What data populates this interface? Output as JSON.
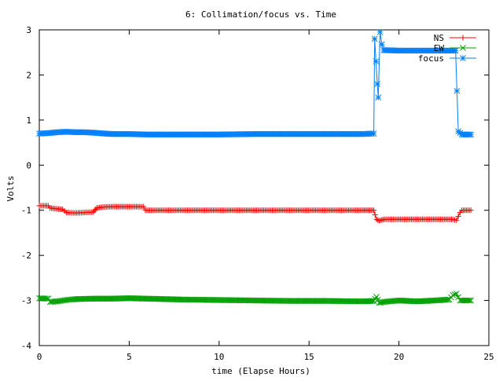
{
  "chart_data": {
    "type": "line",
    "title": "6: Collimation/focus vs. Time",
    "xlabel": "time (Elapse Hours)",
    "ylabel": "Volts",
    "xlim": [
      0,
      25
    ],
    "ylim": [
      -4,
      3
    ],
    "xticks": [
      0,
      5,
      10,
      15,
      20,
      25
    ],
    "yticks": [
      -4,
      -3,
      -2,
      -1,
      0,
      1,
      2,
      3
    ],
    "grid": false,
    "legend_position": "top-right",
    "series": [
      {
        "name": "NS",
        "color": "#ff0000",
        "marker": "plus",
        "points": [
          [
            0.0,
            -0.9
          ],
          [
            0.5,
            -0.9
          ],
          [
            0.6,
            -0.95
          ],
          [
            1.0,
            -0.97
          ],
          [
            1.3,
            -0.98
          ],
          [
            1.5,
            -1.05
          ],
          [
            2.0,
            -1.06
          ],
          [
            2.5,
            -1.05
          ],
          [
            3.0,
            -1.04
          ],
          [
            3.2,
            -0.95
          ],
          [
            3.5,
            -0.93
          ],
          [
            4.0,
            -0.92
          ],
          [
            5.0,
            -0.92
          ],
          [
            5.8,
            -0.92
          ],
          [
            5.9,
            -1.0
          ],
          [
            8.0,
            -1.0
          ],
          [
            10.0,
            -1.0
          ],
          [
            12.0,
            -1.0
          ],
          [
            14.0,
            -1.0
          ],
          [
            16.0,
            -1.0
          ],
          [
            18.0,
            -1.0
          ],
          [
            18.6,
            -1.0
          ],
          [
            18.75,
            -1.2
          ],
          [
            18.9,
            -1.23
          ],
          [
            19.2,
            -1.2
          ],
          [
            20.0,
            -1.2
          ],
          [
            21.0,
            -1.2
          ],
          [
            22.0,
            -1.2
          ],
          [
            23.0,
            -1.2
          ],
          [
            23.2,
            -1.22
          ],
          [
            23.4,
            -1.05
          ],
          [
            23.5,
            -1.0
          ],
          [
            24.0,
            -1.0
          ]
        ]
      },
      {
        "name": "EW",
        "color": "#00a000",
        "marker": "cross",
        "points": [
          [
            0.0,
            -2.95
          ],
          [
            0.5,
            -2.96
          ],
          [
            0.6,
            -3.03
          ],
          [
            1.0,
            -3.02
          ],
          [
            1.5,
            -2.99
          ],
          [
            2.0,
            -2.97
          ],
          [
            3.0,
            -2.96
          ],
          [
            4.0,
            -2.96
          ],
          [
            5.0,
            -2.95
          ],
          [
            6.0,
            -2.96
          ],
          [
            7.0,
            -2.97
          ],
          [
            8.0,
            -2.98
          ],
          [
            10.0,
            -2.99
          ],
          [
            12.0,
            -3.0
          ],
          [
            14.0,
            -3.01
          ],
          [
            16.0,
            -3.01
          ],
          [
            18.0,
            -3.02
          ],
          [
            18.6,
            -3.01
          ],
          [
            18.75,
            -2.92
          ],
          [
            18.9,
            -3.05
          ],
          [
            19.2,
            -3.03
          ],
          [
            20.0,
            -3.0
          ],
          [
            21.0,
            -3.02
          ],
          [
            22.0,
            -3.0
          ],
          [
            22.8,
            -2.98
          ],
          [
            23.0,
            -2.88
          ],
          [
            23.2,
            -2.85
          ],
          [
            23.4,
            -3.0
          ],
          [
            24.0,
            -3.0
          ]
        ]
      },
      {
        "name": "focus",
        "color": "#0080ff",
        "marker": "star",
        "points": [
          [
            0.0,
            0.7
          ],
          [
            0.5,
            0.71
          ],
          [
            1.0,
            0.73
          ],
          [
            1.5,
            0.74
          ],
          [
            2.0,
            0.73
          ],
          [
            2.5,
            0.73
          ],
          [
            3.0,
            0.72
          ],
          [
            4.0,
            0.69
          ],
          [
            5.0,
            0.69
          ],
          [
            6.0,
            0.68
          ],
          [
            7.0,
            0.68
          ],
          [
            8.0,
            0.68
          ],
          [
            10.0,
            0.68
          ],
          [
            12.0,
            0.69
          ],
          [
            14.0,
            0.69
          ],
          [
            16.0,
            0.69
          ],
          [
            18.0,
            0.69
          ],
          [
            18.5,
            0.7
          ],
          [
            18.6,
            0.7
          ],
          [
            18.65,
            2.8
          ],
          [
            18.8,
            1.8
          ],
          [
            18.85,
            1.5
          ],
          [
            18.95,
            2.95
          ],
          [
            19.05,
            2.68
          ],
          [
            19.15,
            2.55
          ],
          [
            20.0,
            2.54
          ],
          [
            21.0,
            2.54
          ],
          [
            22.0,
            2.54
          ],
          [
            23.0,
            2.54
          ],
          [
            23.15,
            2.54
          ],
          [
            23.3,
            0.75
          ],
          [
            23.5,
            0.68
          ],
          [
            24.0,
            0.68
          ]
        ]
      }
    ]
  }
}
